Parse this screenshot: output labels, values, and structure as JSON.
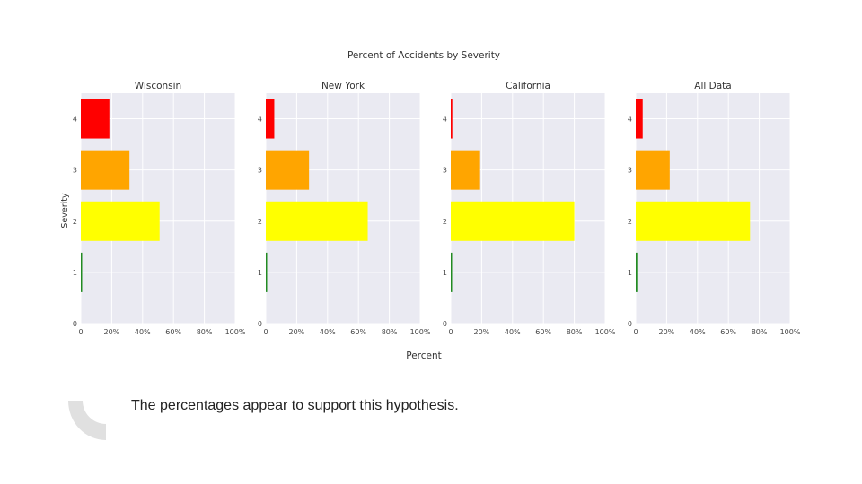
{
  "chart_data": {
    "type": "bar",
    "orientation": "horizontal",
    "title": "Percent of Accidents by Severity",
    "ylabel": "Severity",
    "xlabel": "Percent",
    "categories": [
      "1",
      "2",
      "3",
      "4"
    ],
    "y_ticks": [
      "0",
      "1",
      "2",
      "3",
      "4"
    ],
    "x_ticks": [
      "0",
      "20%",
      "40%",
      "60%",
      "80%",
      "100%"
    ],
    "xlim": [
      0,
      100
    ],
    "ylim": [
      0,
      4.5
    ],
    "grid": true,
    "colors": {
      "1": "#228b22",
      "2": "#ffff00",
      "3": "#ffa500",
      "4": "#ff0000"
    },
    "panels": [
      {
        "title": "Wisconsin",
        "values": [
          0.5,
          51,
          31.5,
          18.5
        ]
      },
      {
        "title": "New York",
        "values": [
          0.5,
          66,
          28,
          5.5
        ]
      },
      {
        "title": "California",
        "values": [
          0.5,
          80,
          19,
          1
        ]
      },
      {
        "title": "All Data",
        "values": [
          1,
          74,
          22,
          4.5
        ]
      }
    ]
  },
  "caption": {
    "text": "The percentages appear to support this hypothesis."
  },
  "style": {
    "plot_background": "#eaeaf2",
    "grid_color": "#ffffff",
    "quote_color": "#e0e0e0"
  }
}
